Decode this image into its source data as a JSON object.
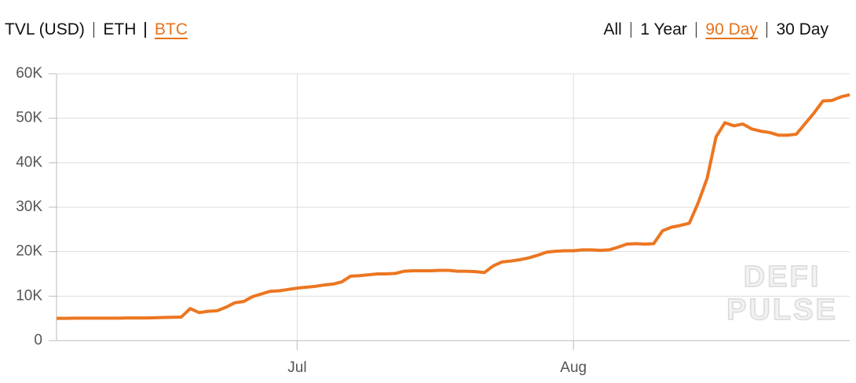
{
  "toolbar": {
    "metrics": [
      "TVL (USD)",
      "ETH",
      "BTC"
    ],
    "metrics_active": 2,
    "ranges": [
      "All",
      "1 Year",
      "90 Day",
      "30 Day"
    ],
    "ranges_active": 2,
    "active_color": "#e8731a"
  },
  "chart_data": {
    "type": "line",
    "categories": [
      null,
      null,
      null,
      null,
      null,
      null,
      null,
      null,
      null,
      null,
      null,
      null,
      null,
      null,
      null,
      null,
      null,
      null,
      null,
      null,
      null,
      null,
      null,
      null,
      null,
      null,
      null,
      "Jul",
      null,
      null,
      null,
      null,
      null,
      null,
      null,
      null,
      null,
      null,
      null,
      null,
      null,
      null,
      null,
      null,
      null,
      null,
      null,
      null,
      null,
      null,
      null,
      null,
      null,
      null,
      null,
      null,
      null,
      null,
      "Aug",
      null,
      null,
      null,
      null,
      null,
      null,
      null,
      null,
      null,
      null,
      null,
      null,
      null,
      null,
      null,
      null,
      null,
      null,
      null,
      null,
      null,
      null,
      null,
      null,
      null,
      null,
      null,
      null,
      null,
      null,
      null
    ],
    "values": [
      5000,
      5000,
      5050,
      5050,
      5050,
      5050,
      5050,
      5050,
      5100,
      5100,
      5100,
      5150,
      5200,
      5250,
      5300,
      7200,
      6300,
      6600,
      6700,
      7500,
      8500,
      8800,
      9900,
      10500,
      11100,
      11200,
      11500,
      11800,
      12000,
      12200,
      12500,
      12700,
      13200,
      14500,
      14600,
      14800,
      15000,
      15000,
      15100,
      15600,
      15700,
      15700,
      15700,
      15800,
      15800,
      15600,
      15600,
      15500,
      15300,
      16800,
      17700,
      17900,
      18200,
      18600,
      19200,
      19900,
      20100,
      20200,
      20200,
      20400,
      20400,
      20300,
      20400,
      21000,
      21700,
      21800,
      21700,
      21800,
      24700,
      25500,
      25900,
      26400,
      31000,
      36500,
      45800,
      49000,
      48300,
      48700,
      47600,
      47100,
      46800,
      46200,
      46200,
      46400,
      48800,
      51200,
      53900,
      54000,
      54800,
      55300
    ],
    "color": "#ec7621",
    "ylim": [
      0,
      60000
    ],
    "yticks": [
      0,
      {
        "value": 10000,
        "label": "10K"
      },
      {
        "value": 20000,
        "label": "20K"
      },
      {
        "value": 30000,
        "label": "30K"
      },
      {
        "value": 40000,
        "label": "40K"
      },
      {
        "value": 50000,
        "label": "50K"
      },
      {
        "value": 60000,
        "label": "60K"
      }
    ],
    "grid": true,
    "watermark": [
      "DEFI",
      "PULSE"
    ]
  }
}
